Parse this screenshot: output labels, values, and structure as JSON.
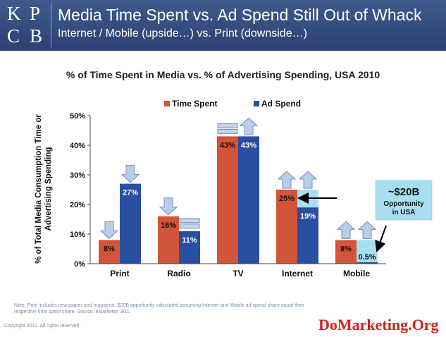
{
  "header": {
    "logo_letters": [
      "K",
      "P",
      "C",
      "B"
    ],
    "title": "Media Time Spent vs. Ad Spend Still Out of Whack",
    "subtitle": "Internet / Mobile (upside…) vs. Print (downside…)"
  },
  "chart_data": {
    "type": "bar",
    "title": "% of Time Spent in Media vs. % of Advertising Spending, USA 2010",
    "ylabel": "% of Total Media Consumption Time or Advertising Spending",
    "ylim": [
      0,
      50
    ],
    "ytick_labels": [
      "0%",
      "10%",
      "20%",
      "30%",
      "40%",
      "50%"
    ],
    "categories": [
      "Print",
      "Radio",
      "TV",
      "Internet",
      "Mobile"
    ],
    "series": [
      {
        "name": "Time Spent",
        "color": "#d2543a",
        "values": [
          8,
          16,
          43,
          25,
          8
        ],
        "labels": [
          "8%",
          "16%",
          "43%",
          "25%",
          "8%"
        ]
      },
      {
        "name": "Ad Spend",
        "color": "#2a4fa0",
        "values": [
          27,
          11,
          43,
          19,
          0.5
        ],
        "labels": [
          "27%",
          "11%",
          "43%",
          "19%",
          "0.5%"
        ]
      }
    ],
    "opportunity_gap": {
      "categories": [
        "Internet",
        "Mobile"
      ],
      "color": "#a8dff0"
    },
    "trend_markers": {
      "Print": [
        "down",
        "down"
      ],
      "Radio": [
        "down",
        "flat"
      ],
      "TV": [
        "flat",
        "up"
      ],
      "Internet": [
        "up",
        "up"
      ],
      "Mobile": [
        "up",
        "up"
      ]
    },
    "callout": {
      "amount": "~$20B",
      "line1": "Opportunity",
      "line2": "in USA"
    },
    "legend_position": "top-center",
    "grid": false
  },
  "note": "Note: Print includes newspaper and magazine. $20B opportunity calculated assuming Internet and Mobile ad spend share equal their respective time spent share. Source: eMarketer, 3/11.",
  "copyright": "Copyright 2011. All rights reserved.",
  "brand": "DoMarketing.Org"
}
